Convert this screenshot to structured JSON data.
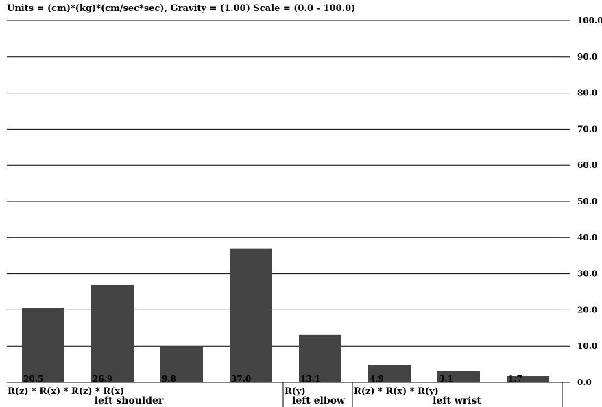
{
  "header": {
    "title": "Units = (cm)*(kg)*(cm/sec*sec), Gravity = (1.00) Scale = (0.0 - 100.0)"
  },
  "chart_data": {
    "type": "bar",
    "title": "Units = (cm)*(kg)*(cm/sec*sec), Gravity = (1.00) Scale = (0.0 - 100.0)",
    "ylim": [
      0,
      100
    ],
    "y_ticks": [
      "0.0",
      "10.0",
      "20.0",
      "30.0",
      "40.0",
      "50.0",
      "60.0",
      "70.0",
      "80.0",
      "90.0",
      "100.0"
    ],
    "grid": true,
    "values": [
      20.5,
      26.9,
      9.8,
      37.0,
      13.1,
      4.9,
      3.1,
      1.7
    ],
    "value_labels": [
      "20.5",
      "26.9",
      "9.8",
      "37.0",
      "13.1",
      "4.9",
      "3.1",
      "1.7"
    ],
    "bar_color": "#444444",
    "groups": [
      {
        "name": "left shoulder",
        "rotation": "R(z) * R(x) * R(z) * R(x)",
        "count": 4
      },
      {
        "name": "left elbow",
        "rotation": "R(y)",
        "count": 1
      },
      {
        "name": "left wrist",
        "rotation": "R(z) * R(x) * R(y)",
        "count": 3
      }
    ]
  }
}
